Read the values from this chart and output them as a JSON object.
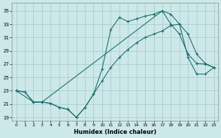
{
  "xlabel": "Humidex (Indice chaleur)",
  "bg_color": "#cce8e8",
  "grid_color": "#aacccc",
  "line_color": "#1a6b6b",
  "xlim": [
    -0.5,
    23.5
  ],
  "ylim": [
    18.5,
    36.2
  ],
  "xticks": [
    0,
    1,
    2,
    3,
    4,
    5,
    6,
    7,
    8,
    9,
    10,
    11,
    12,
    13,
    14,
    15,
    16,
    17,
    18,
    19,
    20,
    21,
    22,
    23
  ],
  "yticks": [
    19,
    21,
    23,
    25,
    27,
    29,
    31,
    33,
    35
  ],
  "curve1_x": [
    0,
    1,
    2,
    3,
    4,
    5,
    6,
    7,
    8,
    9,
    10,
    11,
    12,
    13,
    14,
    15,
    16,
    17,
    18,
    19,
    20,
    21,
    22,
    23
  ],
  "curve1_y": [
    23,
    22.8,
    21.3,
    21.3,
    21.1,
    20.5,
    20.2,
    19.0,
    20.5,
    22.5,
    26.3,
    32.2,
    34.0,
    33.4,
    33.8,
    34.2,
    34.5,
    35.0,
    33.0,
    31.5,
    28.5,
    27.1,
    27.0,
    26.5
  ],
  "curve2_x": [
    0,
    2,
    3,
    4,
    5,
    6,
    7,
    8,
    9,
    10,
    11,
    12,
    13,
    14,
    15,
    16,
    17,
    18,
    19,
    20,
    21,
    22,
    23
  ],
  "curve2_y": [
    23,
    21.3,
    21.3,
    21.1,
    20.5,
    20.2,
    19.0,
    20.5,
    22.5,
    24.5,
    26.5,
    28.0,
    29.2,
    30.2,
    31.0,
    31.5,
    32.0,
    32.8,
    33.0,
    31.5,
    28.5,
    27.1,
    26.5
  ],
  "curve3_x": [
    0,
    1,
    2,
    3,
    17,
    18,
    19,
    20,
    21,
    22,
    23
  ],
  "curve3_y": [
    23,
    22.8,
    21.3,
    21.3,
    35.0,
    34.5,
    33.0,
    28.0,
    25.5,
    25.5,
    26.5
  ]
}
